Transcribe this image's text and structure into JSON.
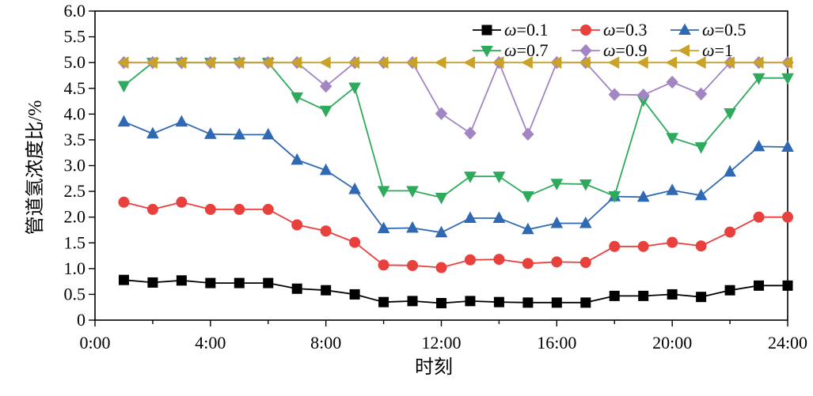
{
  "chart_data": {
    "type": "line",
    "xlabel": "时刻",
    "ylabel": "管道氢浓度比/%",
    "xlim": [
      0,
      24
    ],
    "ylim": [
      0,
      6.0
    ],
    "x_ticks": [
      {
        "value": 0,
        "label": "0:00"
      },
      {
        "value": 4,
        "label": "4:00"
      },
      {
        "value": 8,
        "label": "8:00"
      },
      {
        "value": 12,
        "label": "12:00"
      },
      {
        "value": 16,
        "label": "16:00"
      },
      {
        "value": 20,
        "label": "20:00"
      },
      {
        "value": 24,
        "label": "24:00"
      }
    ],
    "y_ticks": [
      {
        "value": 0,
        "label": "0"
      },
      {
        "value": 0.5,
        "label": "0.5"
      },
      {
        "value": 1.0,
        "label": "1.0"
      },
      {
        "value": 1.5,
        "label": "1.5"
      },
      {
        "value": 2.0,
        "label": "2.0"
      },
      {
        "value": 2.5,
        "label": "2.5"
      },
      {
        "value": 3.0,
        "label": "3.0"
      },
      {
        "value": 3.5,
        "label": "3.5"
      },
      {
        "value": 4.0,
        "label": "4.0"
      },
      {
        "value": 4.5,
        "label": "4.5"
      },
      {
        "value": 5.0,
        "label": "5.0"
      },
      {
        "value": 5.5,
        "label": "5.5"
      },
      {
        "value": 6.0,
        "label": "6.0"
      }
    ],
    "x": [
      1,
      2,
      3,
      4,
      5,
      6,
      7,
      8,
      9,
      10,
      11,
      12,
      13,
      14,
      15,
      16,
      17,
      18,
      19,
      20,
      21,
      22,
      23,
      24
    ],
    "grid": false,
    "legend_position": "top-right",
    "series": [
      {
        "name": "=0.1",
        "omega": "ω",
        "color": "#000000",
        "marker": "square",
        "values": [
          0.78,
          0.73,
          0.77,
          0.72,
          0.72,
          0.72,
          0.61,
          0.58,
          0.5,
          0.35,
          0.37,
          0.33,
          0.37,
          0.35,
          0.34,
          0.34,
          0.34,
          0.47,
          0.47,
          0.5,
          0.45,
          0.58,
          0.67,
          0.67
        ]
      },
      {
        "name": "=0.3",
        "omega": "ω",
        "color": "#e8403c",
        "marker": "circle",
        "values": [
          2.29,
          2.15,
          2.29,
          2.15,
          2.15,
          2.15,
          1.85,
          1.73,
          1.51,
          1.07,
          1.06,
          1.02,
          1.17,
          1.18,
          1.1,
          1.13,
          1.12,
          1.43,
          1.43,
          1.51,
          1.44,
          1.71,
          2.0,
          2.0
        ]
      },
      {
        "name": "=0.5",
        "omega": "ω",
        "color": "#2f69b3",
        "marker": "triangle-up",
        "values": [
          3.85,
          3.62,
          3.85,
          3.61,
          3.6,
          3.6,
          3.11,
          2.91,
          2.54,
          1.78,
          1.79,
          1.7,
          1.98,
          1.98,
          1.76,
          1.88,
          1.88,
          2.4,
          2.39,
          2.52,
          2.42,
          2.88,
          3.37,
          3.36
        ]
      },
      {
        "name": "=0.7",
        "omega": "ω",
        "color": "#2eaa5c",
        "marker": "triangle-down",
        "values": [
          4.55,
          5.0,
          5.0,
          5.0,
          5.0,
          5.0,
          4.33,
          4.07,
          4.52,
          2.51,
          2.51,
          2.38,
          2.79,
          2.79,
          2.41,
          2.65,
          2.64,
          2.41,
          4.27,
          3.54,
          3.36,
          4.02,
          4.7,
          4.7
        ]
      },
      {
        "name": "=0.9",
        "omega": "ω",
        "color": "#a285c2",
        "marker": "diamond",
        "values": [
          5.0,
          5.0,
          5.0,
          5.0,
          5.0,
          5.0,
          5.0,
          4.54,
          5.0,
          5.0,
          5.0,
          4.01,
          3.63,
          5.0,
          3.61,
          5.0,
          5.0,
          4.38,
          4.37,
          4.62,
          4.39,
          5.0,
          5.0,
          5.0
        ]
      },
      {
        "name": "=1",
        "omega": "ω",
        "color": "#c9a227",
        "marker": "triangle-left",
        "values": [
          5.0,
          5.0,
          5.0,
          5.0,
          5.0,
          5.0,
          5.0,
          5.0,
          5.0,
          5.0,
          5.0,
          5.0,
          5.0,
          5.0,
          5.0,
          5.0,
          5.0,
          5.0,
          5.0,
          5.0,
          5.0,
          5.0,
          5.0,
          5.0
        ]
      }
    ]
  }
}
